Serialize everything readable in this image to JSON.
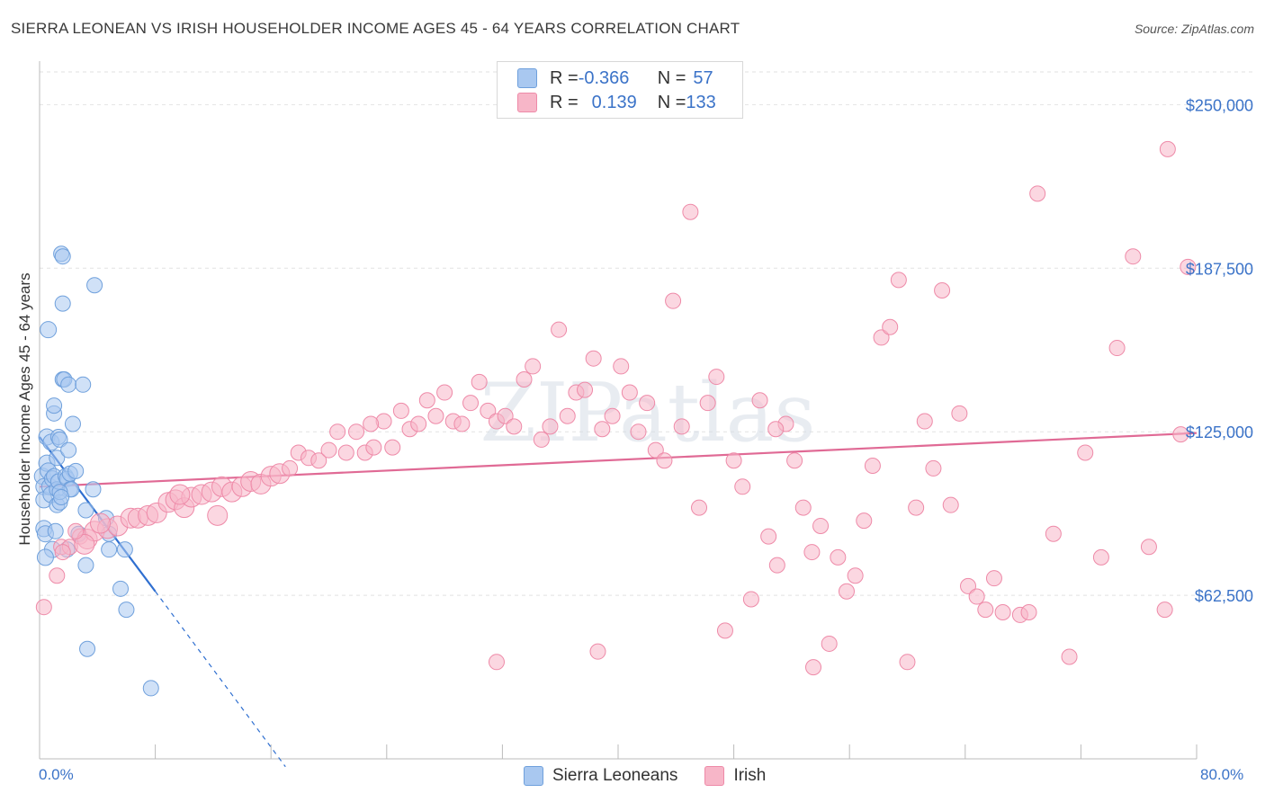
{
  "header": {
    "title": "SIERRA LEONEAN VS IRISH HOUSEHOLDER INCOME AGES 45 - 64 YEARS CORRELATION CHART",
    "source": "Source: ZipAtlas.com"
  },
  "watermark": "ZIPatlas",
  "legend_top": [
    {
      "r_label": "R = ",
      "r_value": "-0.366",
      "n_label": "N = ",
      "n_value": "57",
      "color": "#a9c8f0"
    },
    {
      "r_label": "R = ",
      "r_value": "0.139",
      "n_label": "N = ",
      "n_value": "133",
      "color": "#f7b6c8"
    }
  ],
  "legend_bottom": [
    {
      "label": "Sierra Leoneans",
      "color": "#a9c8f0"
    },
    {
      "label": "Irish",
      "color": "#f7b6c8"
    }
  ],
  "chart_data": {
    "type": "scatter",
    "title": "SIERRA LEONEAN VS IRISH HOUSEHOLDER INCOME AGES 45 - 64 YEARS CORRELATION CHART",
    "xlabel": "",
    "ylabel": "Householder Income Ages 45 - 64 years",
    "xlim": [
      0,
      80
    ],
    "ylim": [
      0,
      262500
    ],
    "x_tick_labels": [
      "0.0%",
      "80.0%"
    ],
    "y_ticks": [
      62500,
      125000,
      187500,
      250000
    ],
    "y_tick_labels": [
      "$62,500",
      "$125,000",
      "$187,500",
      "$250,000"
    ],
    "grid": true,
    "series": [
      {
        "name": "Sierra Leoneans",
        "color": "#a9c8f0",
        "stroke": "#6fa0dc",
        "trend": {
          "x0": 0,
          "y0": 123000,
          "x1": 8,
          "y1": 64000,
          "dash_to_x": 17,
          "dash_to_y": -3000,
          "color": "#2f6fd0"
        },
        "points": [
          [
            0.2,
            108000
          ],
          [
            0.3,
            104000
          ],
          [
            0.3,
            99000
          ],
          [
            0.3,
            88000
          ],
          [
            0.4,
            86000
          ],
          [
            0.5,
            113000
          ],
          [
            0.5,
            123000
          ],
          [
            0.6,
            110000
          ],
          [
            0.7,
            104000
          ],
          [
            0.8,
            101000
          ],
          [
            0.8,
            121000
          ],
          [
            0.9,
            107000
          ],
          [
            1.0,
            108000
          ],
          [
            1.0,
            132000
          ],
          [
            1.0,
            135000
          ],
          [
            1.2,
            97000
          ],
          [
            1.2,
            103000
          ],
          [
            1.3,
            106000
          ],
          [
            1.3,
            123000
          ],
          [
            1.4,
            122000
          ],
          [
            1.4,
            98000
          ],
          [
            1.5,
            193000
          ],
          [
            1.6,
            145000
          ],
          [
            1.6,
            192000
          ],
          [
            1.6,
            174000
          ],
          [
            1.7,
            145000
          ],
          [
            1.8,
            108000
          ],
          [
            1.9,
            80000
          ],
          [
            1.9,
            107000
          ],
          [
            2.0,
            143000
          ],
          [
            2.1,
            103000
          ],
          [
            2.1,
            109000
          ],
          [
            2.2,
            103000
          ],
          [
            2.3,
            128000
          ],
          [
            2.7,
            86000
          ],
          [
            3.0,
            143000
          ],
          [
            3.2,
            95000
          ],
          [
            3.2,
            74000
          ],
          [
            3.3,
            42000
          ],
          [
            3.7,
            103000
          ],
          [
            3.8,
            181000
          ],
          [
            4.6,
            92000
          ],
          [
            4.8,
            86000
          ],
          [
            4.8,
            80000
          ],
          [
            5.6,
            65000
          ],
          [
            5.9,
            80000
          ],
          [
            6.0,
            57000
          ],
          [
            7.7,
            27000
          ],
          [
            0.6,
            164000
          ],
          [
            0.9,
            80000
          ],
          [
            1.1,
            87000
          ],
          [
            1.4,
            102000
          ],
          [
            1.5,
            100000
          ],
          [
            2.5,
            110000
          ],
          [
            0.4,
            77000
          ],
          [
            1.2,
            115000
          ],
          [
            2.0,
            118000
          ]
        ]
      },
      {
        "name": "Irish",
        "color": "#f7b6c8",
        "stroke": "#ee8aa8",
        "trend": {
          "x0": 0,
          "y0": 104000,
          "x1": 80,
          "y1": 124500,
          "color": "#e06a95"
        },
        "points": [
          [
            0.3,
            58000
          ],
          [
            1.2,
            70000
          ],
          [
            1.5,
            81000
          ],
          [
            2.1,
            81000
          ],
          [
            2.8,
            85000
          ],
          [
            3.3,
            84000
          ],
          [
            3.8,
            87000
          ],
          [
            4.7,
            88000
          ],
          [
            5.4,
            89000
          ],
          [
            6.3,
            92000
          ],
          [
            6.8,
            92000
          ],
          [
            7.5,
            93000
          ],
          [
            8.1,
            94000
          ],
          [
            8.9,
            98000
          ],
          [
            9.4,
            99000
          ],
          [
            10.0,
            96000
          ],
          [
            10.5,
            100000
          ],
          [
            11.2,
            101000
          ],
          [
            11.9,
            102000
          ],
          [
            12.6,
            104000
          ],
          [
            13.3,
            102000
          ],
          [
            14.0,
            104000
          ],
          [
            14.6,
            106000
          ],
          [
            15.3,
            105000
          ],
          [
            16.0,
            108000
          ],
          [
            16.6,
            109000
          ],
          [
            17.3,
            111000
          ],
          [
            17.9,
            117000
          ],
          [
            18.6,
            115000
          ],
          [
            19.3,
            114000
          ],
          [
            20.0,
            118000
          ],
          [
            20.6,
            125000
          ],
          [
            21.2,
            117000
          ],
          [
            21.9,
            125000
          ],
          [
            22.5,
            117000
          ],
          [
            23.1,
            119000
          ],
          [
            23.8,
            129000
          ],
          [
            24.4,
            119000
          ],
          [
            25.0,
            133000
          ],
          [
            25.6,
            126000
          ],
          [
            26.2,
            128000
          ],
          [
            26.8,
            137000
          ],
          [
            27.4,
            131000
          ],
          [
            28.0,
            140000
          ],
          [
            28.6,
            129000
          ],
          [
            29.2,
            128000
          ],
          [
            29.8,
            136000
          ],
          [
            30.4,
            144000
          ],
          [
            31.0,
            133000
          ],
          [
            31.6,
            129000
          ],
          [
            32.2,
            131000
          ],
          [
            32.8,
            127000
          ],
          [
            33.5,
            145000
          ],
          [
            34.1,
            150000
          ],
          [
            34.7,
            122000
          ],
          [
            35.3,
            127000
          ],
          [
            35.9,
            164000
          ],
          [
            36.5,
            131000
          ],
          [
            37.1,
            140000
          ],
          [
            37.7,
            141000
          ],
          [
            38.3,
            153000
          ],
          [
            38.9,
            126000
          ],
          [
            39.6,
            131000
          ],
          [
            40.2,
            150000
          ],
          [
            40.8,
            140000
          ],
          [
            41.4,
            125000
          ],
          [
            42.0,
            136000
          ],
          [
            42.6,
            118000
          ],
          [
            43.2,
            114000
          ],
          [
            43.8,
            175000
          ],
          [
            44.4,
            127000
          ],
          [
            45.0,
            209000
          ],
          [
            45.6,
            96000
          ],
          [
            46.2,
            136000
          ],
          [
            46.8,
            146000
          ],
          [
            47.4,
            49000
          ],
          [
            48.0,
            114000
          ],
          [
            48.6,
            104000
          ],
          [
            49.2,
            61000
          ],
          [
            49.8,
            137000
          ],
          [
            50.4,
            85000
          ],
          [
            51.0,
            74000
          ],
          [
            51.6,
            128000
          ],
          [
            52.2,
            114000
          ],
          [
            52.8,
            96000
          ],
          [
            53.4,
            79000
          ],
          [
            54.0,
            89000
          ],
          [
            54.6,
            44000
          ],
          [
            55.2,
            77000
          ],
          [
            55.8,
            64000
          ],
          [
            56.4,
            70000
          ],
          [
            57.0,
            91000
          ],
          [
            57.6,
            112000
          ],
          [
            58.2,
            161000
          ],
          [
            58.8,
            165000
          ],
          [
            59.4,
            183000
          ],
          [
            60.0,
            37000
          ],
          [
            60.6,
            96000
          ],
          [
            61.2,
            129000
          ],
          [
            61.8,
            111000
          ],
          [
            62.4,
            179000
          ],
          [
            63.0,
            97000
          ],
          [
            63.6,
            132000
          ],
          [
            64.2,
            66000
          ],
          [
            64.8,
            62000
          ],
          [
            65.4,
            57000
          ],
          [
            66.0,
            69000
          ],
          [
            66.6,
            56000
          ],
          [
            67.8,
            55000
          ],
          [
            68.4,
            56000
          ],
          [
            69.0,
            216000
          ],
          [
            70.1,
            86000
          ],
          [
            71.2,
            39000
          ],
          [
            72.3,
            117000
          ],
          [
            73.4,
            77000
          ],
          [
            74.5,
            157000
          ],
          [
            75.6,
            192000
          ],
          [
            76.7,
            81000
          ],
          [
            77.8,
            57000
          ],
          [
            78.9,
            124000
          ],
          [
            78.0,
            233000
          ],
          [
            79.4,
            188000
          ],
          [
            38.6,
            41000
          ],
          [
            50.9,
            126000
          ],
          [
            31.6,
            37000
          ],
          [
            12.3,
            93000
          ],
          [
            9.7,
            101000
          ],
          [
            4.2,
            90000
          ],
          [
            53.5,
            35000
          ],
          [
            22.9,
            128000
          ],
          [
            3.1,
            82000
          ],
          [
            2.5,
            87000
          ],
          [
            1.6,
            79000
          ]
        ]
      }
    ]
  }
}
